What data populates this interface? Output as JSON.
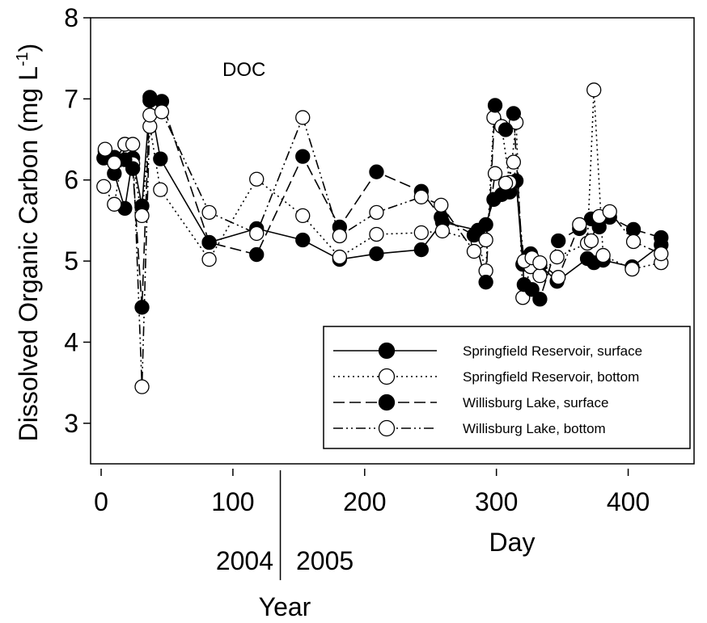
{
  "chart_data": {
    "type": "line",
    "annotation": "DOC",
    "ylabel": "Dissolved Organic Carbon (mg L",
    "ylabel_sup": "-1",
    "ylabel_end": ")",
    "xlabel": "Day",
    "year_axis_label": "Year",
    "year_labels": [
      "2004",
      "2005"
    ],
    "year_divider_day": 136,
    "xlim": [
      -8,
      450
    ],
    "ylim": [
      2.5,
      8
    ],
    "xticks": [
      0,
      100,
      200,
      300,
      400
    ],
    "yticks": [
      3,
      4,
      5,
      6,
      7,
      8
    ],
    "legend_position": "lower-right",
    "grid": false,
    "series": [
      {
        "name": "Springfield Reservoir, surface",
        "marker": "filled",
        "line": "solid",
        "x": [
          2,
          10,
          18,
          24,
          31,
          37,
          45,
          82,
          118,
          153,
          181,
          209,
          243,
          259,
          286,
          292,
          298,
          304,
          310,
          315,
          320,
          326,
          333,
          346,
          369,
          374,
          381,
          403,
          425
        ],
        "y": [
          6.27,
          6.08,
          5.65,
          6.27,
          5.68,
          6.98,
          6.26,
          5.23,
          5.4,
          5.26,
          5.02,
          5.09,
          5.14,
          5.48,
          5.38,
          5.45,
          5.76,
          5.82,
          5.85,
          5.99,
          4.96,
          5.09,
          4.95,
          4.75,
          5.03,
          4.98,
          5.01,
          4.93,
          5.2
        ]
      },
      {
        "name": "Springfield Reservoir, bottom",
        "marker": "open",
        "line": "dotted",
        "x": [
          2,
          10,
          18,
          24,
          31,
          37,
          45,
          82,
          118,
          153,
          181,
          209,
          243,
          259,
          286,
          292,
          298,
          304,
          310,
          315,
          320,
          326,
          333,
          346,
          369,
          374,
          381,
          403,
          425
        ],
        "y": [
          5.92,
          5.7,
          6.44,
          6.2,
          5.56,
          6.66,
          5.88,
          5.02,
          6.01,
          5.56,
          5.05,
          5.33,
          5.35,
          5.37,
          5.24,
          4.88,
          6.77,
          6.66,
          5.97,
          6.71,
          4.55,
          4.93,
          4.82,
          5.05,
          5.22,
          7.11,
          5.07,
          4.9,
          4.98
        ]
      },
      {
        "name": "Willisburg Lake, surface",
        "marker": "filled",
        "line": "dashed",
        "x": [
          3,
          10,
          18,
          24,
          31,
          37,
          46,
          82,
          118,
          153,
          181,
          209,
          243,
          258,
          283,
          292,
          299,
          307,
          313,
          321,
          327,
          333,
          347,
          363,
          372,
          378,
          386,
          404,
          425
        ],
        "y": [
          6.35,
          6.28,
          6.25,
          6.14,
          4.43,
          7.02,
          6.97,
          5.23,
          5.08,
          6.29,
          5.42,
          6.1,
          5.86,
          5.54,
          5.32,
          4.74,
          6.92,
          6.62,
          6.82,
          4.71,
          4.65,
          4.53,
          5.25,
          5.4,
          5.52,
          5.42,
          5.54,
          5.39,
          5.29
        ]
      },
      {
        "name": "Willisburg Lake, bottom",
        "marker": "open",
        "line": "dashdotdot",
        "x": [
          3,
          10,
          18,
          24,
          31,
          37,
          46,
          82,
          118,
          153,
          181,
          209,
          243,
          258,
          283,
          292,
          299,
          307,
          313,
          321,
          327,
          333,
          347,
          363,
          372,
          378,
          386,
          404,
          425
        ],
        "y": [
          6.38,
          6.21,
          6.44,
          6.44,
          3.45,
          6.8,
          6.84,
          5.6,
          5.34,
          6.77,
          5.31,
          5.6,
          5.79,
          5.69,
          5.12,
          5.26,
          6.08,
          5.96,
          6.22,
          5.0,
          5.04,
          4.98,
          4.8,
          5.45,
          5.25,
          5.55,
          5.61,
          5.24,
          5.09
        ]
      }
    ]
  }
}
